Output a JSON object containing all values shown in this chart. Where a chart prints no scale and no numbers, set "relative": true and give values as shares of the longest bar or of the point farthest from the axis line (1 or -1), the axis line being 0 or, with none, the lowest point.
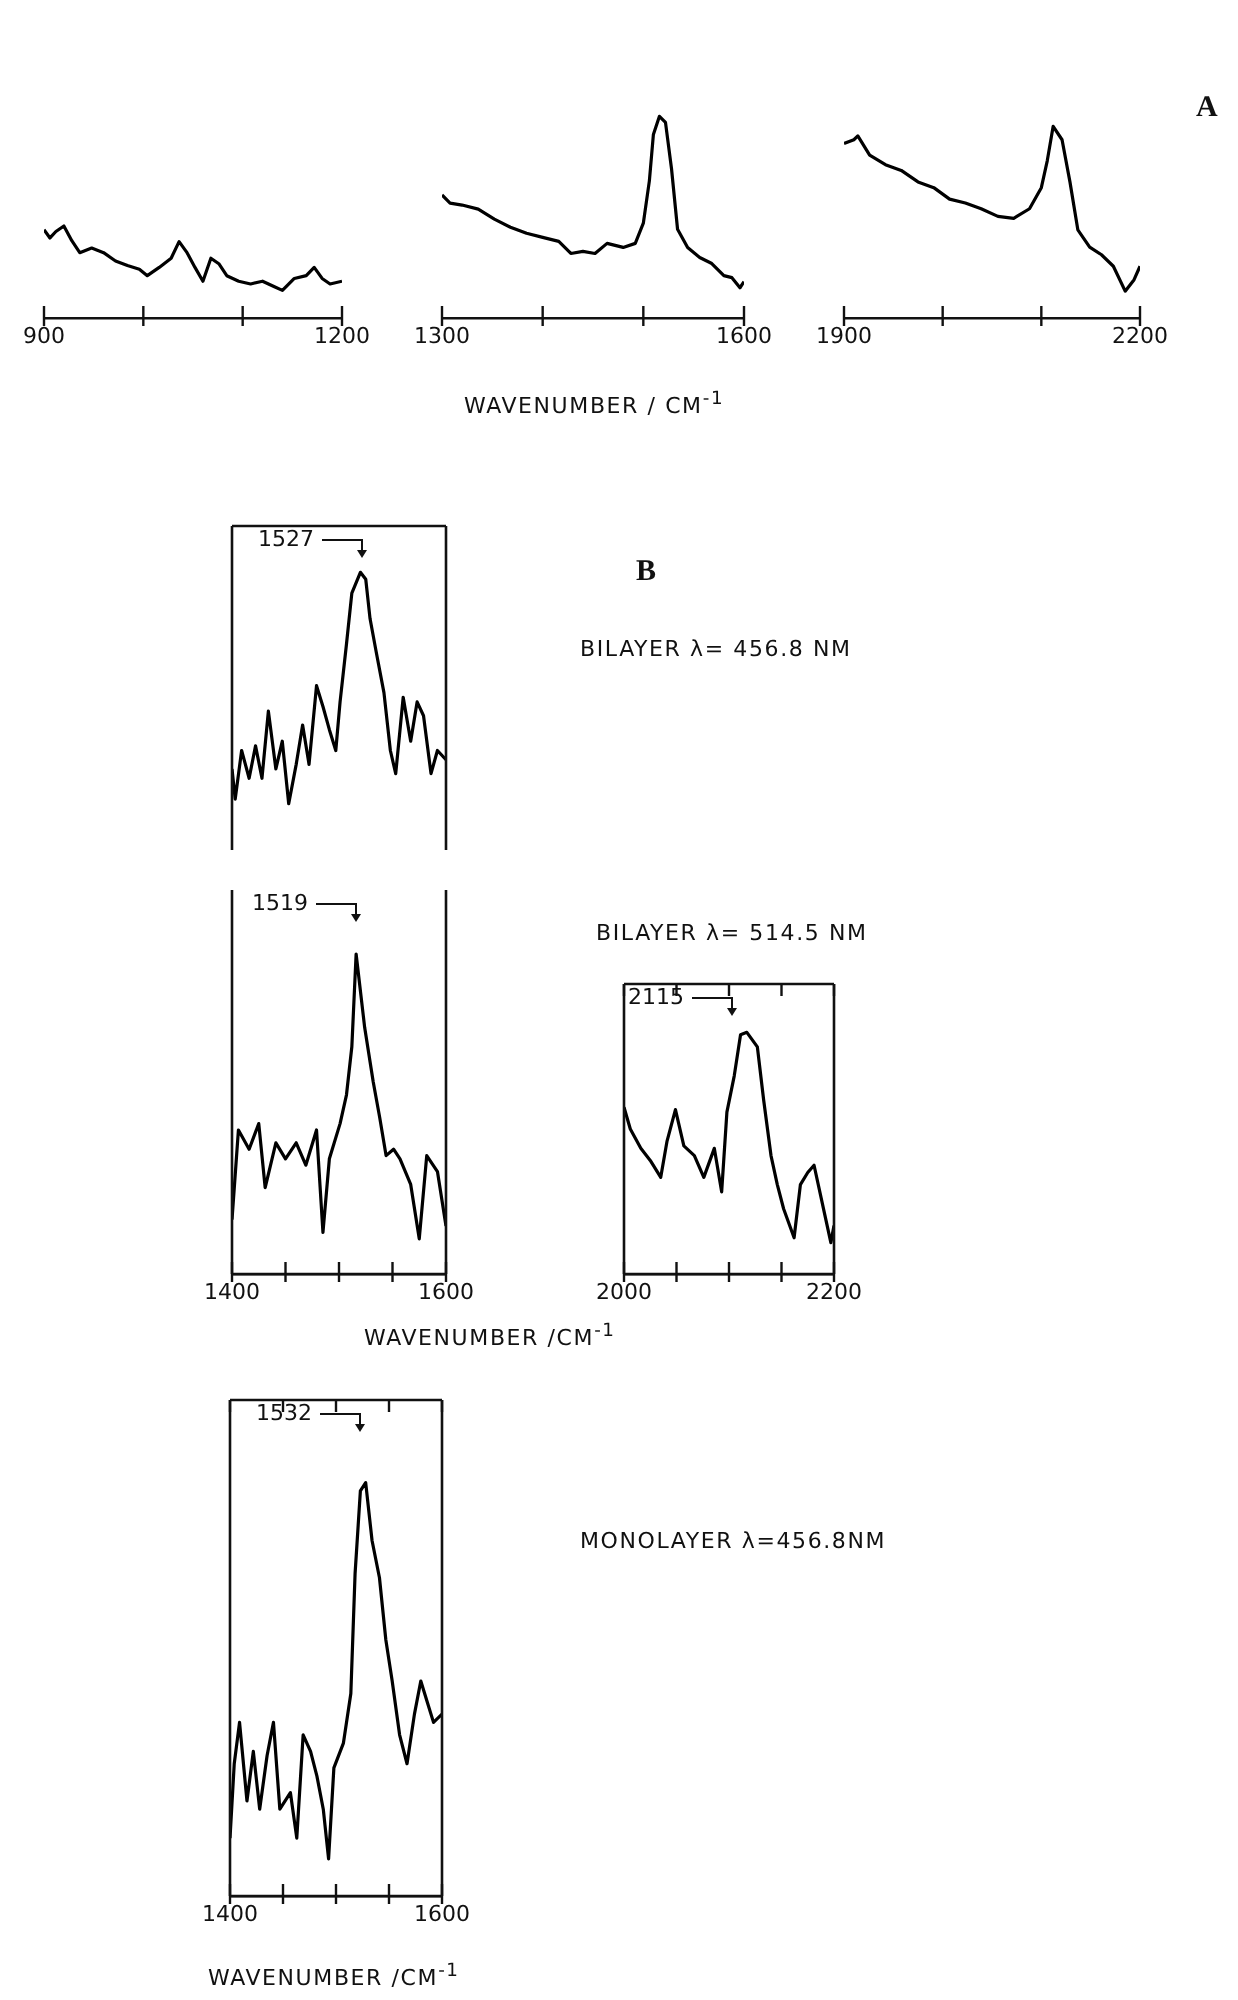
{
  "chart_data": [
    {
      "type": "line",
      "relative": true,
      "color": "#000000",
      "xlim": [
        900,
        1200
      ],
      "xticks": [
        900,
        {
          "value": 1000,
          "label": null
        },
        {
          "value": 1100,
          "label": null
        },
        1200
      ],
      "tick_labels": "x",
      "x": [
        900,
        906,
        912,
        920,
        928,
        936,
        948,
        960,
        972,
        984,
        996,
        1004,
        1016,
        1028,
        1036,
        1044,
        1052,
        1060,
        1068,
        1076,
        1084,
        1096,
        1108,
        1120,
        1132,
        1140,
        1152,
        1164,
        1172,
        1180,
        1188,
        1200
      ],
      "values": [
        0.96,
        0.87,
        0.94,
        1.0,
        0.84,
        0.71,
        0.76,
        0.71,
        0.62,
        0.57,
        0.53,
        0.46,
        0.55,
        0.65,
        0.83,
        0.71,
        0.55,
        0.4,
        0.65,
        0.59,
        0.46,
        0.4,
        0.37,
        0.4,
        0.34,
        0.3,
        0.43,
        0.46,
        0.55,
        0.43,
        0.37,
        0.4
      ]
    },
    {
      "type": "line",
      "relative": true,
      "color": "#000000",
      "xlim": [
        1300,
        1600
      ],
      "xticks": [
        1300,
        {
          "value": 1400,
          "label": null
        },
        {
          "value": 1500,
          "label": null
        },
        1600
      ],
      "tick_labels": "x",
      "xlabel": "WAVENUMBER / CM$^{-1}$",
      "x": [
        1300,
        1308,
        1320,
        1336,
        1352,
        1368,
        1384,
        1400,
        1416,
        1428,
        1440,
        1452,
        1464,
        1480,
        1492,
        1500,
        1506,
        1510,
        1516,
        1522,
        1528,
        1534,
        1544,
        1556,
        1568,
        1580,
        1588,
        1596,
        1600
      ],
      "values": [
        0.61,
        0.57,
        0.56,
        0.54,
        0.49,
        0.45,
        0.42,
        0.4,
        0.38,
        0.32,
        0.33,
        0.32,
        0.37,
        0.35,
        0.37,
        0.47,
        0.68,
        0.91,
        1.0,
        0.97,
        0.74,
        0.44,
        0.35,
        0.3,
        0.27,
        0.21,
        0.2,
        0.15,
        0.18
      ]
    },
    {
      "type": "line",
      "relative": true,
      "color": "#000000",
      "xlim": [
        1900,
        2200
      ],
      "xticks": [
        1900,
        {
          "value": 2000,
          "label": null
        },
        {
          "value": 2100,
          "label": null
        },
        2200
      ],
      "tick_labels": "x",
      "annotations": [
        "A"
      ],
      "x": [
        1900,
        1910,
        1914,
        1926,
        1942,
        1958,
        1975,
        1991,
        2007,
        2023,
        2039,
        2056,
        2072,
        2088,
        2100,
        2106,
        2112,
        2121,
        2129,
        2137,
        2149,
        2161,
        2173,
        2185,
        2194,
        2200
      ],
      "values": [
        0.91,
        0.93,
        0.95,
        0.85,
        0.8,
        0.77,
        0.71,
        0.68,
        0.62,
        0.6,
        0.57,
        0.53,
        0.52,
        0.57,
        0.68,
        0.82,
        1.0,
        0.93,
        0.71,
        0.46,
        0.37,
        0.33,
        0.27,
        0.14,
        0.2,
        0.27
      ]
    },
    {
      "type": "line",
      "relative": true,
      "color": "#000000",
      "xlim": [
        1400,
        1600
      ],
      "tick_labels": false,
      "annotations": [
        "1527",
        "B",
        "BILAYER λ= 456.8 NM"
      ],
      "x": [
        1400,
        1403,
        1409,
        1416,
        1422,
        1428,
        1434,
        1441,
        1447,
        1453,
        1460,
        1466,
        1472,
        1479,
        1485,
        1491,
        1497,
        1501,
        1507,
        1512,
        1520,
        1525,
        1529,
        1535,
        1542,
        1548,
        1553,
        1560,
        1567,
        1573,
        1579,
        1586,
        1592,
        1600
      ],
      "values": [
        0.15,
        0.02,
        0.23,
        0.11,
        0.25,
        0.11,
        0.4,
        0.15,
        0.27,
        0,
        0.17,
        0.34,
        0.17,
        0.51,
        0.42,
        0.32,
        0.23,
        0.44,
        0.69,
        0.91,
        1.0,
        0.97,
        0.8,
        0.65,
        0.48,
        0.23,
        0.13,
        0.46,
        0.27,
        0.44,
        0.38,
        0.13,
        0.23,
        0.19
      ]
    },
    {
      "type": "line",
      "relative": true,
      "color": "#000000",
      "xlim": [
        1400,
        1600
      ],
      "xticks": [
        1400,
        {
          "value": 1450,
          "label": null
        },
        {
          "value": 1500,
          "label": null
        },
        {
          "value": 1550,
          "label": null
        },
        1600
      ],
      "tick_labels": "x",
      "xlabel": "WAVENUMBER /CM$^{-1}$",
      "annotations": [
        "1519"
      ],
      "x": [
        1400,
        1406,
        1416,
        1425,
        1431,
        1441,
        1450,
        1460,
        1469,
        1479,
        1485,
        1491,
        1501,
        1507,
        1512,
        1516,
        1524,
        1532,
        1538,
        1544,
        1551,
        1557,
        1567,
        1575,
        1582,
        1592,
        1600
      ],
      "values": [
        0.17,
        0.45,
        0.39,
        0.47,
        0.27,
        0.41,
        0.36,
        0.41,
        0.34,
        0.45,
        0.13,
        0.36,
        0.47,
        0.56,
        0.71,
        1.0,
        0.77,
        0.6,
        0.49,
        0.37,
        0.39,
        0.36,
        0.28,
        0.11,
        0.37,
        0.32,
        0.15
      ]
    },
    {
      "type": "line",
      "relative": true,
      "color": "#000000",
      "xlim": [
        2000,
        2200
      ],
      "xticks": [
        2000,
        {
          "value": 2050,
          "label": null
        },
        {
          "value": 2100,
          "label": null
        },
        {
          "value": 2150,
          "label": null
        },
        2200
      ],
      "tick_labels": "x",
      "subtitle": "BILAYER λ= 514.5 NM",
      "annotations": [
        "2115"
      ],
      "x": [
        2000,
        2006,
        2016,
        2025,
        2035,
        2041,
        2049,
        2057,
        2067,
        2076,
        2086,
        2093,
        2098,
        2105,
        2111,
        2117,
        2127,
        2133,
        2140,
        2146,
        2152,
        2162,
        2168,
        2175,
        2181,
        2191,
        2197,
        2200
      ],
      "values": [
        0.69,
        0.6,
        0.52,
        0.47,
        0.4,
        0.55,
        0.68,
        0.53,
        0.49,
        0.4,
        0.52,
        0.34,
        0.67,
        0.82,
        0.99,
        1.0,
        0.94,
        0.72,
        0.49,
        0.37,
        0.27,
        0.15,
        0.37,
        0.42,
        0.45,
        0.25,
        0.13,
        0.2
      ]
    },
    {
      "type": "line",
      "relative": true,
      "color": "#000000",
      "xlim": [
        1400,
        1600
      ],
      "xticks": [
        1400,
        {
          "value": 1450,
          "label": null
        },
        {
          "value": 1500,
          "label": null
        },
        {
          "value": 1550,
          "label": null
        },
        1600
      ],
      "tick_labels": "x",
      "xlabel": "WAVENUMBER /CM$^{-1}$",
      "annotations": [
        "1532",
        "MONOLAYER λ=456.8NM"
      ],
      "x": [
        1400,
        1404,
        1409,
        1416,
        1422,
        1428,
        1435,
        1441,
        1447,
        1457,
        1463,
        1469,
        1476,
        1482,
        1488,
        1493,
        1498,
        1507,
        1514,
        1518,
        1523,
        1528,
        1534,
        1541,
        1547,
        1553,
        1560,
        1567,
        1574,
        1580,
        1586,
        1592,
        1600
      ],
      "values": [
        0.14,
        0.32,
        0.42,
        0.23,
        0.35,
        0.21,
        0.34,
        0.42,
        0.21,
        0.25,
        0.14,
        0.39,
        0.35,
        0.29,
        0.21,
        0.09,
        0.31,
        0.37,
        0.49,
        0.78,
        0.98,
        1.0,
        0.86,
        0.77,
        0.62,
        0.52,
        0.39,
        0.32,
        0.44,
        0.52,
        0.47,
        0.42,
        0.44
      ]
    }
  ]
}
